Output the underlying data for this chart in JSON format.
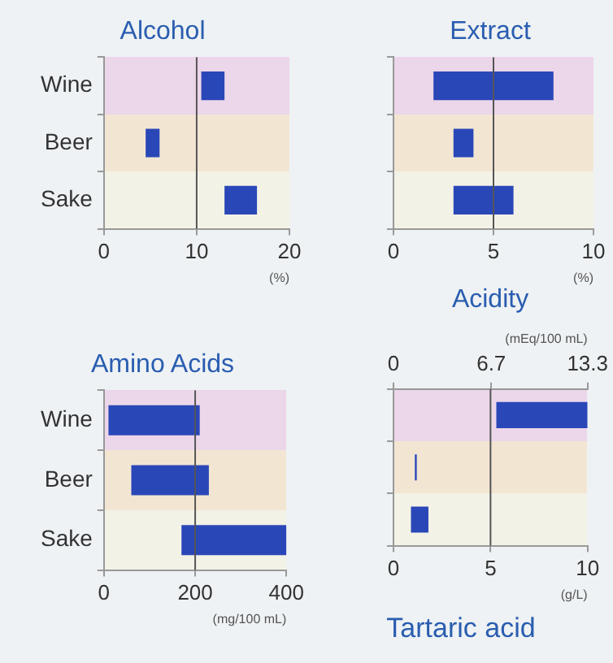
{
  "chart_data": [
    {
      "type": "bar",
      "title": "Alcohol",
      "orientation": "horizontal",
      "categories": [
        "Wine",
        "Beer",
        "Sake"
      ],
      "base": [
        10.5,
        4.5,
        13
      ],
      "values": [
        2.5,
        1.5,
        3.5
      ],
      "color": "#2a47b8",
      "xlim": [
        0,
        20
      ],
      "xticks": [
        0,
        10,
        20
      ],
      "xlabel": "(%)",
      "grid": false,
      "ref_lines": [
        {
          "axis": "x",
          "value": 10
        }
      ]
    },
    {
      "type": "bar",
      "title": "Extract",
      "orientation": "horizontal",
      "categories": [
        null,
        null,
        null
      ],
      "base": [
        2,
        3,
        3
      ],
      "values": [
        6,
        1,
        3
      ],
      "color": "#2a47b8",
      "xlim": [
        0,
        10
      ],
      "xticks": [
        0,
        5,
        10
      ],
      "xlabel": "(%)",
      "grid": false,
      "tick_labels": "x",
      "ref_lines": [
        {
          "axis": "x",
          "value": 5
        }
      ]
    },
    {
      "type": "bar",
      "title": "Amino Acids",
      "orientation": "horizontal",
      "categories": [
        "Wine",
        "Beer",
        "Sake"
      ],
      "base": [
        10,
        60,
        170
      ],
      "values": [
        200,
        170,
        230
      ],
      "color": "#2a47b8",
      "xlim": [
        0,
        400
      ],
      "xticks": [
        0,
        200,
        400
      ],
      "xlabel": "(mg/100 mL)",
      "grid": false,
      "ref_lines": [
        {
          "axis": "x",
          "value": 200
        }
      ]
    },
    {
      "type": "bar",
      "title": "Acidity",
      "orientation": "horizontal",
      "categories": [
        null,
        null,
        null
      ],
      "base": [
        5.3,
        1.1,
        0.9
      ],
      "values": [
        4.7,
        0.1,
        0.9
      ],
      "color": "#2a47b8",
      "xlim": [
        0,
        10
      ],
      "xticks": [
        0,
        5,
        10
      ],
      "xlabel": "(g/L)",
      "x2lim": [
        0,
        13.3
      ],
      "x2ticks": [
        0,
        6.7,
        13.3
      ],
      "x2label": "(mEq/100 mL)",
      "grid": false,
      "tick_labels": "x",
      "ref_lines": [
        {
          "axis": "x",
          "value": 5
        }
      ],
      "annotations": [
        "Tartaric acid"
      ]
    }
  ]
}
